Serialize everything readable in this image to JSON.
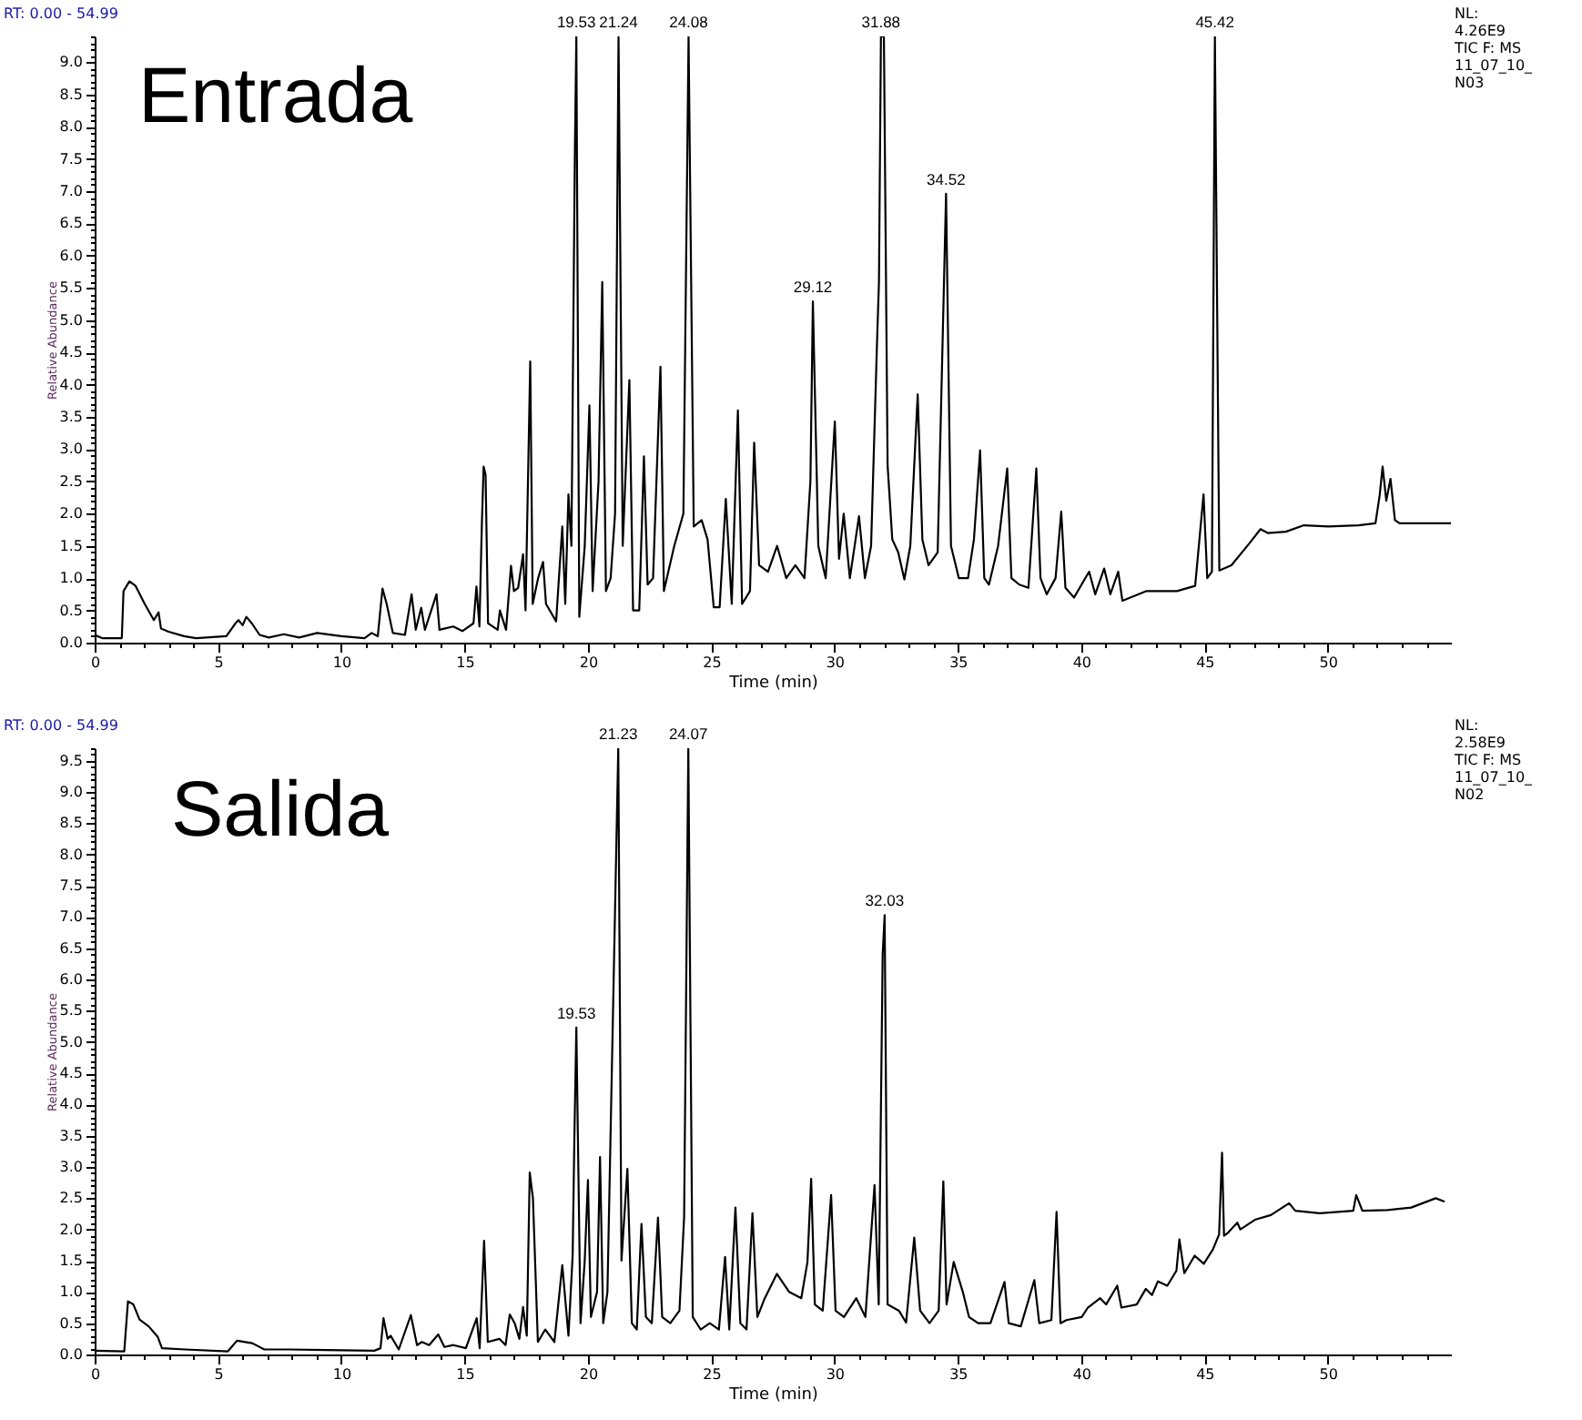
{
  "chart_data": [
    {
      "type": "line",
      "title": "Entrada",
      "subtitle": "RT: 0.00 - 54.99",
      "xlabel": "Time (min)",
      "ylabel": "Relative Abundance",
      "line_style": "solid",
      "xlim": [
        0,
        54.99
      ],
      "ylim": [
        0,
        9.4
      ],
      "xticks": [
        0,
        {
          "value": 1,
          "label": null
        },
        {
          "value": 2,
          "label": null
        },
        {
          "value": 3,
          "label": null
        },
        {
          "value": 4,
          "label": null
        },
        5,
        {
          "value": 6,
          "label": null
        },
        {
          "value": 7,
          "label": null
        },
        {
          "value": 8,
          "label": null
        },
        {
          "value": 9,
          "label": null
        },
        10,
        {
          "value": 11,
          "label": null
        },
        {
          "value": 12,
          "label": null
        },
        {
          "value": 13,
          "label": null
        },
        {
          "value": 14,
          "label": null
        },
        15,
        {
          "value": 16,
          "label": null
        },
        {
          "value": 17,
          "label": null
        },
        {
          "value": 18,
          "label": null
        },
        {
          "value": 19,
          "label": null
        },
        20,
        {
          "value": 21,
          "label": null
        },
        {
          "value": 22,
          "label": null
        },
        {
          "value": 23,
          "label": null
        },
        {
          "value": 24,
          "label": null
        },
        25,
        {
          "value": 26,
          "label": null
        },
        {
          "value": 27,
          "label": null
        },
        {
          "value": 28,
          "label": null
        },
        {
          "value": 29,
          "label": null
        },
        30,
        {
          "value": 31,
          "label": null
        },
        {
          "value": 32,
          "label": null
        },
        {
          "value": 33,
          "label": null
        },
        {
          "value": 34,
          "label": null
        },
        35,
        {
          "value": 36,
          "label": null
        },
        {
          "value": 37,
          "label": null
        },
        {
          "value": 38,
          "label": null
        },
        {
          "value": 39,
          "label": null
        },
        40,
        {
          "value": 41,
          "label": null
        },
        {
          "value": 42,
          "label": null
        },
        {
          "value": 43,
          "label": null
        },
        {
          "value": 44,
          "label": null
        },
        45,
        {
          "value": 46,
          "label": null
        },
        {
          "value": 47,
          "label": null
        },
        {
          "value": 48,
          "label": null
        },
        {
          "value": 49,
          "label": null
        },
        50,
        {
          "value": 51,
          "label": null
        },
        {
          "value": 52,
          "label": null
        },
        {
          "value": 53,
          "label": null
        },
        {
          "value": 54,
          "label": null
        }
      ],
      "yticks": [
        {
          "value": 0,
          "label": "0.0"
        },
        {
          "value": 0.1,
          "label": null
        },
        {
          "value": 0.2,
          "label": null
        },
        {
          "value": 0.3,
          "label": null
        },
        {
          "value": 0.4,
          "label": null
        },
        0.5,
        {
          "value": 0.6,
          "label": null
        },
        {
          "value": 0.7,
          "label": null
        },
        {
          "value": 0.8,
          "label": null
        },
        {
          "value": 0.9,
          "label": null
        },
        {
          "value": 1,
          "label": "1.0"
        },
        {
          "value": 1.1,
          "label": null
        },
        {
          "value": 1.2,
          "label": null
        },
        {
          "value": 1.3,
          "label": null
        },
        {
          "value": 1.4,
          "label": null
        },
        1.5,
        {
          "value": 1.6,
          "label": null
        },
        {
          "value": 1.7,
          "label": null
        },
        {
          "value": 1.8,
          "label": null
        },
        {
          "value": 1.9,
          "label": null
        },
        {
          "value": 2,
          "label": "2.0"
        },
        {
          "value": 2.1,
          "label": null
        },
        {
          "value": 2.2,
          "label": null
        },
        {
          "value": 2.3,
          "label": null
        },
        {
          "value": 2.4,
          "label": null
        },
        2.5,
        {
          "value": 2.6,
          "label": null
        },
        {
          "value": 2.7,
          "label": null
        },
        {
          "value": 2.8,
          "label": null
        },
        {
          "value": 2.9,
          "label": null
        },
        {
          "value": 3,
          "label": "3.0"
        },
        {
          "value": 3.1,
          "label": null
        },
        {
          "value": 3.2,
          "label": null
        },
        {
          "value": 3.3,
          "label": null
        },
        {
          "value": 3.4,
          "label": null
        },
        3.5,
        {
          "value": 3.6,
          "label": null
        },
        {
          "value": 3.7,
          "label": null
        },
        {
          "value": 3.8,
          "label": null
        },
        {
          "value": 3.9,
          "label": null
        },
        {
          "value": 4,
          "label": "4.0"
        },
        {
          "value": 4.1,
          "label": null
        },
        {
          "value": 4.2,
          "label": null
        },
        {
          "value": 4.3,
          "label": null
        },
        {
          "value": 4.4,
          "label": null
        },
        4.5,
        {
          "value": 4.6,
          "label": null
        },
        {
          "value": 4.7,
          "label": null
        },
        {
          "value": 4.8,
          "label": null
        },
        {
          "value": 4.9,
          "label": null
        },
        {
          "value": 5,
          "label": "5.0"
        },
        {
          "value": 5.1,
          "label": null
        },
        {
          "value": 5.2,
          "label": null
        },
        {
          "value": 5.3,
          "label": null
        },
        {
          "value": 5.4,
          "label": null
        },
        5.5,
        {
          "value": 5.6,
          "label": null
        },
        {
          "value": 5.7,
          "label": null
        },
        {
          "value": 5.8,
          "label": null
        },
        {
          "value": 5.9,
          "label": null
        },
        {
          "value": 6,
          "label": "6.0"
        },
        {
          "value": 6.1,
          "label": null
        },
        {
          "value": 6.2,
          "label": null
        },
        {
          "value": 6.3,
          "label": null
        },
        {
          "value": 6.4,
          "label": null
        },
        6.5,
        {
          "value": 6.6,
          "label": null
        },
        {
          "value": 6.7,
          "label": null
        },
        {
          "value": 6.8,
          "label": null
        },
        {
          "value": 6.9,
          "label": null
        },
        {
          "value": 7,
          "label": "7.0"
        },
        {
          "value": 7.1,
          "label": null
        },
        {
          "value": 7.2,
          "label": null
        },
        {
          "value": 7.3,
          "label": null
        },
        {
          "value": 7.4,
          "label": null
        },
        7.5,
        {
          "value": 7.6,
          "label": null
        },
        {
          "value": 7.7,
          "label": null
        },
        {
          "value": 7.8,
          "label": null
        },
        {
          "value": 7.9,
          "label": null
        },
        {
          "value": 8,
          "label": "8.0"
        },
        {
          "value": 8.1,
          "label": null
        },
        {
          "value": 8.2,
          "label": null
        },
        {
          "value": 8.3,
          "label": null
        },
        {
          "value": 8.4,
          "label": null
        },
        8.5,
        {
          "value": 8.6,
          "label": null
        },
        {
          "value": 8.7,
          "label": null
        },
        {
          "value": 8.8,
          "label": null
        },
        {
          "value": 8.9,
          "label": null
        },
        {
          "value": 9,
          "label": "9.0"
        },
        {
          "value": 9.1,
          "label": null
        },
        {
          "value": 9.2,
          "label": null
        },
        {
          "value": 9.3,
          "label": null
        },
        {
          "value": 9.4,
          "label": null
        }
      ],
      "series": [
        {
          "color": "#000000",
          "x": [
            0,
            0.3,
            1.1,
            1.17,
            1.41,
            1.66,
            2.03,
            2.4,
            2.59,
            2.69,
            3.0,
            3.62,
            4.11,
            5.34,
            5.71,
            5.83,
            6.0,
            6.15,
            6.37,
            6.69,
            7.06,
            7.67,
            8.29,
            9.02,
            10.0,
            10.94,
            11.23,
            11.48,
            11.67,
            11.84,
            12.09,
            12.58,
            12.85,
            13.02,
            13.24,
            13.39,
            13.86,
            13.98,
            14.54,
            14.91,
            15.36,
            15.48,
            15.6,
            15.7,
            15.77,
            15.85,
            15.95,
            16.34,
            16.43,
            16.68,
            16.88,
            17.0,
            17.17,
            17.37,
            17.47,
            17.66,
            17.76,
            17.98,
            18.18,
            18.3,
            18.71,
            18.96,
            19.08,
            19.21,
            19.33,
            19.47,
            19.53,
            19.65,
            19.87,
            20.06,
            20.19,
            20.43,
            20.58,
            20.73,
            20.92,
            21.1,
            21.24,
            21.41,
            21.68,
            21.83,
            22.08,
            22.27,
            22.42,
            22.64,
            22.94,
            23.08,
            23.5,
            23.87,
            24.08,
            24.29,
            24.61,
            24.85,
            25.1,
            25.34,
            25.59,
            25.83,
            26.08,
            26.25,
            26.57,
            26.74,
            26.94,
            27.3,
            27.67,
            28.04,
            28.41,
            28.78,
            29.02,
            29.12,
            29.34,
            29.64,
            30.01,
            30.18,
            30.37,
            30.62,
            30.99,
            31.23,
            31.48,
            31.72,
            31.8,
            31.88,
            32.0,
            32.15,
            32.34,
            32.58,
            32.83,
            33.07,
            33.37,
            33.56,
            33.81,
            34.18,
            34.52,
            34.72,
            35.04,
            35.41,
            35.65,
            35.9,
            36.07,
            36.26,
            36.63,
            37.0,
            37.17,
            37.49,
            37.86,
            38.18,
            38.35,
            38.6,
            38.96,
            39.19,
            39.36,
            39.71,
            40.32,
            40.57,
            40.93,
            41.18,
            41.5,
            41.67,
            42.65,
            43.88,
            44.62,
            44.96,
            45.11,
            45.3,
            45.42,
            45.6,
            46.09,
            46.82,
            47.27,
            47.56,
            48.3,
            49.03,
            50.02,
            51.24,
            51.93,
            52.1,
            52.22,
            52.37,
            52.54,
            52.72,
            52.91,
            54.99
          ],
          "values": [
            0.12,
            0.07,
            0.07,
            0.8,
            0.95,
            0.88,
            0.6,
            0.35,
            0.47,
            0.22,
            0.17,
            0.1,
            0.07,
            0.1,
            0.3,
            0.35,
            0.27,
            0.4,
            0.3,
            0.12,
            0.08,
            0.13,
            0.08,
            0.15,
            0.1,
            0.07,
            0.15,
            0.1,
            0.84,
            0.6,
            0.15,
            0.12,
            0.75,
            0.2,
            0.54,
            0.2,
            0.75,
            0.2,
            0.25,
            0.18,
            0.3,
            0.87,
            0.25,
            1.85,
            2.73,
            2.6,
            0.3,
            0.2,
            0.5,
            0.2,
            1.19,
            0.8,
            0.85,
            1.37,
            0.5,
            4.36,
            0.6,
            1.0,
            1.25,
            0.6,
            0.33,
            1.8,
            0.6,
            2.3,
            1.5,
            7.6,
            9.4,
            0.4,
            1.5,
            3.68,
            0.8,
            2.5,
            5.59,
            0.8,
            1.0,
            2.0,
            9.4,
            1.5,
            4.07,
            0.5,
            0.5,
            2.89,
            0.9,
            1.0,
            4.28,
            0.8,
            1.5,
            2.0,
            9.4,
            1.8,
            1.9,
            1.6,
            0.55,
            0.55,
            2.23,
            0.6,
            3.6,
            0.6,
            0.8,
            3.1,
            1.2,
            1.1,
            1.5,
            1.0,
            1.2,
            1.0,
            2.5,
            5.29,
            1.5,
            1.0,
            3.43,
            1.3,
            2.0,
            1.0,
            1.96,
            1.0,
            1.5,
            4.64,
            5.6,
            9.4,
            9.4,
            2.75,
            1.6,
            1.4,
            0.98,
            1.5,
            3.85,
            1.6,
            1.2,
            1.4,
            6.96,
            1.5,
            1.0,
            1.0,
            1.6,
            2.98,
            1.0,
            0.9,
            1.5,
            2.7,
            1.0,
            0.9,
            0.85,
            2.7,
            1.0,
            0.75,
            1.0,
            2.03,
            0.85,
            0.7,
            1.1,
            0.75,
            1.15,
            0.75,
            1.1,
            0.65,
            0.8,
            0.8,
            0.88,
            2.3,
            1.0,
            1.1,
            9.4,
            1.12,
            1.2,
            1.54,
            1.76,
            1.7,
            1.72,
            1.82,
            1.8,
            1.82,
            1.85,
            2.28,
            2.73,
            2.2,
            2.54,
            1.9,
            1.85,
            1.85
          ]
        }
      ],
      "annotations": [
        {
          "text": "19.53",
          "x": 19.53,
          "y": 9.4
        },
        {
          "text": "21.24",
          "x": 21.24,
          "y": 9.4
        },
        {
          "text": "24.08",
          "x": 24.08,
          "y": 9.4
        },
        {
          "text": "29.12",
          "x": 29.12,
          "y": 5.29
        },
        {
          "text": "31.88",
          "x": 31.88,
          "y": 9.4
        },
        {
          "text": "34.52",
          "x": 34.52,
          "y": 6.96
        },
        {
          "text": "45.42",
          "x": 45.42,
          "y": 9.4
        },
        "NL:\n4.26E9\nTIC F: MS\n11_07_10_\nN03"
      ]
    },
    {
      "type": "line",
      "title": "Salida",
      "subtitle": "RT: 0.00 - 54.99",
      "xlabel": "Time (min)",
      "ylabel": "Relative Abundance",
      "line_style": "solid",
      "xlim": [
        0,
        54.99
      ],
      "ylim": [
        0,
        9.7
      ],
      "xticks": [
        0,
        {
          "value": 1,
          "label": null
        },
        {
          "value": 2,
          "label": null
        },
        {
          "value": 3,
          "label": null
        },
        {
          "value": 4,
          "label": null
        },
        5,
        {
          "value": 6,
          "label": null
        },
        {
          "value": 7,
          "label": null
        },
        {
          "value": 8,
          "label": null
        },
        {
          "value": 9,
          "label": null
        },
        10,
        {
          "value": 11,
          "label": null
        },
        {
          "value": 12,
          "label": null
        },
        {
          "value": 13,
          "label": null
        },
        {
          "value": 14,
          "label": null
        },
        15,
        {
          "value": 16,
          "label": null
        },
        {
          "value": 17,
          "label": null
        },
        {
          "value": 18,
          "label": null
        },
        {
          "value": 19,
          "label": null
        },
        20,
        {
          "value": 21,
          "label": null
        },
        {
          "value": 22,
          "label": null
        },
        {
          "value": 23,
          "label": null
        },
        {
          "value": 24,
          "label": null
        },
        25,
        {
          "value": 26,
          "label": null
        },
        {
          "value": 27,
          "label": null
        },
        {
          "value": 28,
          "label": null
        },
        {
          "value": 29,
          "label": null
        },
        30,
        {
          "value": 31,
          "label": null
        },
        {
          "value": 32,
          "label": null
        },
        {
          "value": 33,
          "label": null
        },
        {
          "value": 34,
          "label": null
        },
        35,
        {
          "value": 36,
          "label": null
        },
        {
          "value": 37,
          "label": null
        },
        {
          "value": 38,
          "label": null
        },
        {
          "value": 39,
          "label": null
        },
        40,
        {
          "value": 41,
          "label": null
        },
        {
          "value": 42,
          "label": null
        },
        {
          "value": 43,
          "label": null
        },
        {
          "value": 44,
          "label": null
        },
        45,
        {
          "value": 46,
          "label": null
        },
        {
          "value": 47,
          "label": null
        },
        {
          "value": 48,
          "label": null
        },
        {
          "value": 49,
          "label": null
        },
        50,
        {
          "value": 51,
          "label": null
        },
        {
          "value": 52,
          "label": null
        },
        {
          "value": 53,
          "label": null
        },
        {
          "value": 54,
          "label": null
        }
      ],
      "yticks": [
        {
          "value": 0,
          "label": "0.0"
        },
        {
          "value": 0.1,
          "label": null
        },
        {
          "value": 0.2,
          "label": null
        },
        {
          "value": 0.3,
          "label": null
        },
        {
          "value": 0.4,
          "label": null
        },
        0.5,
        {
          "value": 0.6,
          "label": null
        },
        {
          "value": 0.7,
          "label": null
        },
        {
          "value": 0.8,
          "label": null
        },
        {
          "value": 0.9,
          "label": null
        },
        {
          "value": 1,
          "label": "1.0"
        },
        {
          "value": 1.1,
          "label": null
        },
        {
          "value": 1.2,
          "label": null
        },
        {
          "value": 1.3,
          "label": null
        },
        {
          "value": 1.4,
          "label": null
        },
        1.5,
        {
          "value": 1.6,
          "label": null
        },
        {
          "value": 1.7,
          "label": null
        },
        {
          "value": 1.8,
          "label": null
        },
        {
          "value": 1.9,
          "label": null
        },
        {
          "value": 2,
          "label": "2.0"
        },
        {
          "value": 2.1,
          "label": null
        },
        {
          "value": 2.2,
          "label": null
        },
        {
          "value": 2.3,
          "label": null
        },
        {
          "value": 2.4,
          "label": null
        },
        2.5,
        {
          "value": 2.6,
          "label": null
        },
        {
          "value": 2.7,
          "label": null
        },
        {
          "value": 2.8,
          "label": null
        },
        {
          "value": 2.9,
          "label": null
        },
        {
          "value": 3,
          "label": "3.0"
        },
        {
          "value": 3.1,
          "label": null
        },
        {
          "value": 3.2,
          "label": null
        },
        {
          "value": 3.3,
          "label": null
        },
        {
          "value": 3.4,
          "label": null
        },
        3.5,
        {
          "value": 3.6,
          "label": null
        },
        {
          "value": 3.7,
          "label": null
        },
        {
          "value": 3.8,
          "label": null
        },
        {
          "value": 3.9,
          "label": null
        },
        {
          "value": 4,
          "label": "4.0"
        },
        {
          "value": 4.1,
          "label": null
        },
        {
          "value": 4.2,
          "label": null
        },
        {
          "value": 4.3,
          "label": null
        },
        {
          "value": 4.4,
          "label": null
        },
        4.5,
        {
          "value": 4.6,
          "label": null
        },
        {
          "value": 4.7,
          "label": null
        },
        {
          "value": 4.8,
          "label": null
        },
        {
          "value": 4.9,
          "label": null
        },
        {
          "value": 5,
          "label": "5.0"
        },
        {
          "value": 5.1,
          "label": null
        },
        {
          "value": 5.2,
          "label": null
        },
        {
          "value": 5.3,
          "label": null
        },
        {
          "value": 5.4,
          "label": null
        },
        5.5,
        {
          "value": 5.6,
          "label": null
        },
        {
          "value": 5.7,
          "label": null
        },
        {
          "value": 5.8,
          "label": null
        },
        {
          "value": 5.9,
          "label": null
        },
        {
          "value": 6,
          "label": "6.0"
        },
        {
          "value": 6.1,
          "label": null
        },
        {
          "value": 6.2,
          "label": null
        },
        {
          "value": 6.3,
          "label": null
        },
        {
          "value": 6.4,
          "label": null
        },
        6.5,
        {
          "value": 6.6,
          "label": null
        },
        {
          "value": 6.7,
          "label": null
        },
        {
          "value": 6.8,
          "label": null
        },
        {
          "value": 6.9,
          "label": null
        },
        {
          "value": 7,
          "label": "7.0"
        },
        {
          "value": 7.1,
          "label": null
        },
        {
          "value": 7.2,
          "label": null
        },
        {
          "value": 7.3,
          "label": null
        },
        {
          "value": 7.4,
          "label": null
        },
        7.5,
        {
          "value": 7.6,
          "label": null
        },
        {
          "value": 7.7,
          "label": null
        },
        {
          "value": 7.8,
          "label": null
        },
        {
          "value": 7.9,
          "label": null
        },
        {
          "value": 8,
          "label": "8.0"
        },
        {
          "value": 8.1,
          "label": null
        },
        {
          "value": 8.2,
          "label": null
        },
        {
          "value": 8.3,
          "label": null
        },
        {
          "value": 8.4,
          "label": null
        },
        8.5,
        {
          "value": 8.6,
          "label": null
        },
        {
          "value": 8.7,
          "label": null
        },
        {
          "value": 8.8,
          "label": null
        },
        {
          "value": 8.9,
          "label": null
        },
        {
          "value": 9,
          "label": "9.0"
        },
        {
          "value": 9.1,
          "label": null
        },
        {
          "value": 9.2,
          "label": null
        },
        {
          "value": 9.3,
          "label": null
        },
        {
          "value": 9.4,
          "label": null
        },
        9.5,
        {
          "value": 9.6,
          "label": null
        },
        {
          "value": 9.7,
          "label": null
        }
      ],
      "series": [
        {
          "color": "#000000",
          "x": [
            0,
            1.2,
            1.35,
            1.57,
            1.82,
            2.19,
            2.56,
            2.73,
            3.67,
            5.4,
            5.77,
            6.39,
            6.88,
            7.88,
            9.36,
            11.34,
            11.59,
            11.71,
            11.88,
            12.0,
            12.33,
            12.82,
            13.07,
            13.27,
            13.56,
            13.93,
            14.18,
            14.55,
            15.05,
            15.49,
            15.61,
            15.79,
            15.94,
            16.41,
            16.66,
            16.83,
            17.03,
            17.22,
            17.37,
            17.52,
            17.64,
            17.77,
            17.97,
            18.27,
            18.64,
            18.96,
            19.21,
            19.38,
            19.45,
            19.53,
            19.7,
            19.87,
            20.0,
            20.12,
            20.37,
            20.49,
            20.62,
            20.79,
            21.23,
            21.36,
            21.6,
            21.78,
            21.98,
            22.17,
            22.35,
            22.59,
            22.84,
            23.01,
            23.34,
            23.71,
            23.9,
            24.07,
            24.25,
            24.57,
            24.94,
            25.31,
            25.56,
            25.73,
            25.98,
            26.18,
            26.43,
            26.67,
            26.87,
            27.17,
            27.66,
            28.16,
            28.65,
            28.9,
            29.05,
            29.2,
            29.52,
            29.86,
            30.04,
            30.38,
            30.88,
            31.25,
            31.62,
            31.79,
            31.95,
            32.03,
            32.15,
            32.61,
            32.9,
            33.23,
            33.47,
            33.85,
            34.22,
            34.41,
            34.54,
            34.83,
            35.2,
            35.45,
            35.82,
            36.32,
            36.89,
            37.06,
            37.55,
            38.1,
            38.3,
            38.79,
            39.0,
            39.16,
            39.4,
            40.02,
            40.27,
            40.77,
            41.01,
            41.46,
            41.63,
            42.25,
            42.62,
            42.87,
            43.11,
            43.49,
            43.86,
            43.98,
            44.18,
            44.6,
            44.97,
            45.34,
            45.59,
            45.71,
            45.79,
            45.96,
            46.33,
            46.45,
            47.07,
            47.69,
            48.43,
            48.68,
            49.67,
            51.03,
            51.15,
            51.4,
            52.39,
            53.38,
            54.37,
            54.7
          ],
          "values": [
            0.06,
            0.05,
            0.85,
            0.8,
            0.56,
            0.45,
            0.28,
            0.1,
            0.08,
            0.05,
            0.22,
            0.18,
            0.08,
            0.08,
            0.07,
            0.06,
            0.1,
            0.58,
            0.25,
            0.3,
            0.08,
            0.63,
            0.15,
            0.2,
            0.15,
            0.32,
            0.12,
            0.15,
            0.1,
            0.58,
            0.1,
            1.82,
            0.2,
            0.25,
            0.15,
            0.64,
            0.5,
            0.25,
            0.76,
            0.3,
            2.91,
            2.5,
            0.2,
            0.4,
            0.2,
            1.43,
            0.3,
            1.58,
            3.47,
            5.23,
            0.5,
            1.5,
            2.79,
            0.6,
            1.0,
            3.16,
            0.5,
            1.0,
            9.7,
            1.5,
            2.97,
            0.5,
            0.4,
            2.09,
            0.6,
            0.5,
            2.19,
            0.6,
            0.5,
            0.7,
            2.2,
            9.7,
            0.6,
            0.4,
            0.5,
            0.4,
            1.56,
            0.4,
            2.35,
            0.5,
            0.4,
            2.26,
            0.6,
            0.9,
            1.29,
            1.0,
            0.9,
            1.48,
            2.81,
            0.8,
            0.7,
            2.55,
            0.7,
            0.6,
            0.9,
            0.6,
            2.71,
            0.8,
            6.4,
            7.03,
            0.8,
            0.7,
            0.51,
            1.87,
            0.7,
            0.5,
            0.7,
            2.77,
            0.8,
            1.48,
            1.0,
            0.6,
            0.5,
            0.5,
            1.16,
            0.5,
            0.45,
            1.19,
            0.5,
            0.55,
            2.28,
            0.5,
            0.55,
            0.6,
            0.75,
            0.9,
            0.8,
            1.1,
            0.75,
            0.8,
            1.05,
            0.95,
            1.17,
            1.1,
            1.34,
            1.84,
            1.3,
            1.58,
            1.45,
            1.68,
            1.92,
            3.23,
            1.9,
            1.95,
            2.11,
            2.0,
            2.16,
            2.23,
            2.42,
            2.3,
            2.26,
            2.3,
            2.55,
            2.3,
            2.31,
            2.35,
            2.5,
            2.45
          ]
        }
      ],
      "annotations": [
        {
          "text": "19.53",
          "x": 19.53,
          "y": 5.23
        },
        {
          "text": "21.23",
          "x": 21.23,
          "y": 9.7
        },
        {
          "text": "24.07",
          "x": 24.07,
          "y": 9.7
        },
        {
          "text": "32.03",
          "x": 32.03,
          "y": 7.03
        },
        "NL:\n2.58E9\nTIC F: MS\n11_07_10_\nN02"
      ]
    }
  ]
}
